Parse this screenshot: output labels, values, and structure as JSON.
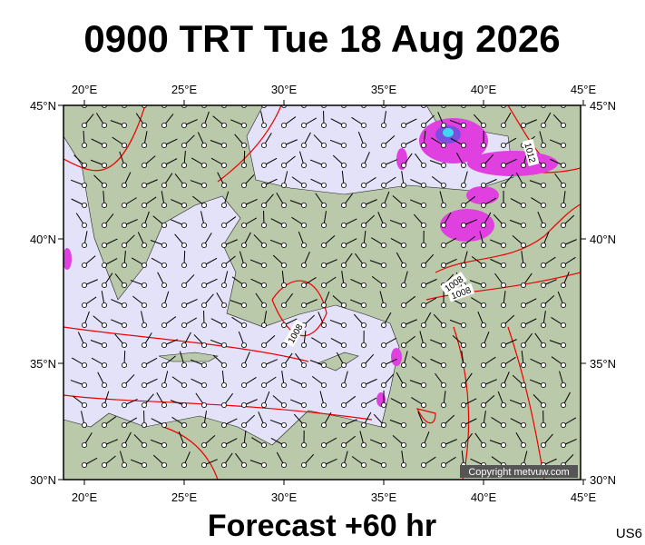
{
  "header": {
    "title": "0900 TRT Tue 18 Aug 2026"
  },
  "map": {
    "lon_ticks": [
      {
        "value": 20,
        "label": "20°E"
      },
      {
        "value": 25,
        "label": "25°E"
      },
      {
        "value": 30,
        "label": "30°E"
      },
      {
        "value": 35,
        "label": "35°E"
      },
      {
        "value": 40,
        "label": "40°E"
      },
      {
        "value": 45,
        "label": "45°E"
      }
    ],
    "lat_ticks": [
      {
        "value": 45,
        "label": "45°N"
      },
      {
        "value": 40,
        "label": "40°N"
      },
      {
        "value": 35,
        "label": "35°N"
      },
      {
        "value": 30,
        "label": "30°N"
      }
    ],
    "contour_labels": [
      "1008",
      "1012",
      "1008",
      "1008"
    ],
    "copyright": "Copyright metvuw.com"
  },
  "footer": {
    "forecast": "Forecast +60 hr",
    "code": "US6"
  }
}
